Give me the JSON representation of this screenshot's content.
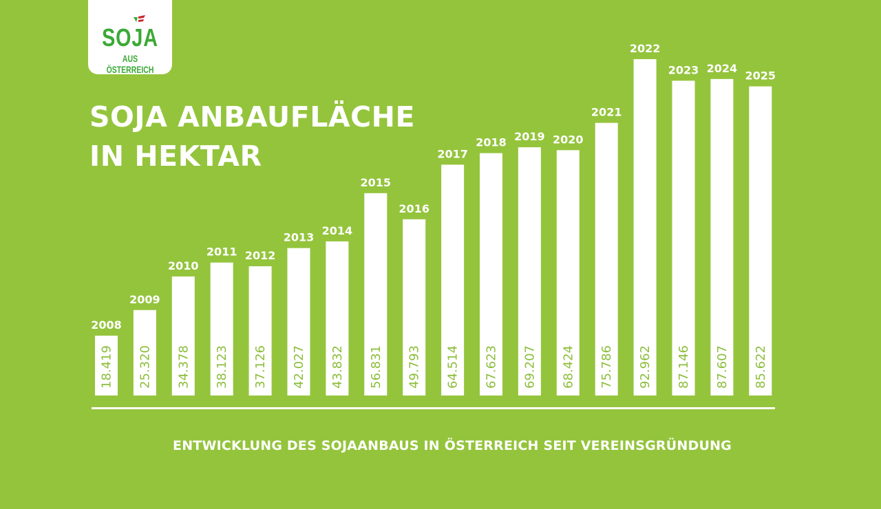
{
  "logo": {
    "main": "SOJA",
    "sub": "AUS ÖSTERREICH"
  },
  "colors": {
    "background": "#94c43c",
    "bar": "#ffffff",
    "value_text": "#8cbe3a",
    "logo_green": "#3aa935",
    "logo_red": "#c8282d"
  },
  "chart_data": {
    "type": "bar",
    "title": [
      "SOJA ANBAUFLÄCHE",
      "IN HEKTAR"
    ],
    "subtitle": "ENTWICKLUNG DES SOJAANBAUS IN ÖSTERREICH SEIT VEREINSGRÜNDUNG",
    "categories": [
      "2008",
      "2009",
      "2010",
      "2011",
      "2012",
      "2013",
      "2014",
      "2015",
      "2016",
      "2017",
      "2018",
      "2019",
      "2020",
      "2021",
      "2022",
      "2023",
      "2024",
      "2025"
    ],
    "values": [
      18419,
      25320,
      34378,
      38123,
      37126,
      42027,
      43832,
      56831,
      49793,
      64514,
      67623,
      69207,
      68424,
      75786,
      92962,
      87146,
      87607,
      85622
    ],
    "value_labels": [
      "18.419",
      "25.320",
      "34.378",
      "38.123",
      "37.126",
      "42.027",
      "43.832",
      "56.831",
      "49.793",
      "64.514",
      "67.623",
      "69.207",
      "68.424",
      "75.786",
      "92.962",
      "87.146",
      "87.607",
      "85.622"
    ],
    "unit": "Hektar",
    "grid": false,
    "legend": "none"
  }
}
